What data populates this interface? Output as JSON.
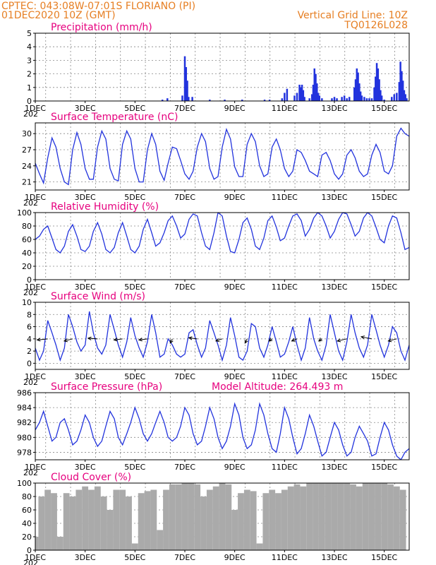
{
  "header": {
    "line1": "CPTEC:   043:08W-07:01S   FLORIANO (PI)",
    "line2": "01DEC2020 10Z (GMT)",
    "grid_note": "Vertical Grid Line: 10Z",
    "run_id": "TQ0126L028"
  },
  "colors": {
    "header": "#e67e22",
    "panel_title": "#e6007e",
    "line": "#2233dd",
    "bar": "#2233dd",
    "cloud": "#aaaaaa"
  },
  "x_axis": {
    "start": "01DEC2020 00Z",
    "end": "16DEC2020 00Z",
    "unit": "day",
    "ticks": [
      {
        "day": 0,
        "label": "1DEC"
      },
      {
        "day": 2,
        "label": "3DEC"
      },
      {
        "day": 4,
        "label": "5DEC"
      },
      {
        "day": 6,
        "label": "7DEC"
      },
      {
        "day": 8,
        "label": "9DEC"
      },
      {
        "day": 10,
        "label": "11DEC"
      },
      {
        "day": 12,
        "label": "13DEC"
      },
      {
        "day": 14,
        "label": "15DEC"
      }
    ],
    "year_stub": "202"
  },
  "chart_data": [
    {
      "type": "bar",
      "title": "Precipitation (mm/h)",
      "ylim": [
        0,
        5
      ],
      "yticks": [
        "0",
        "1",
        "2",
        "3",
        "4",
        "5"
      ],
      "x": [
        5.1,
        5.3,
        5.9,
        6.0,
        6.05,
        6.1,
        6.15,
        6.3,
        7.0,
        7.6,
        8.3,
        9.2,
        9.4,
        9.9,
        10.0,
        10.1,
        10.4,
        10.5,
        10.6,
        10.65,
        10.7,
        10.75,
        10.8,
        11.0,
        11.1,
        11.15,
        11.2,
        11.25,
        11.3,
        11.35,
        11.4,
        11.5,
        11.9,
        12.0,
        12.1,
        12.3,
        12.4,
        12.5,
        12.6,
        12.8,
        12.85,
        12.9,
        12.95,
        13.0,
        13.05,
        13.1,
        13.2,
        13.3,
        13.4,
        13.5,
        13.6,
        13.65,
        13.7,
        13.75,
        13.8,
        13.85,
        13.9,
        14.0,
        14.3,
        14.4,
        14.5,
        14.6,
        14.65,
        14.7,
        14.75,
        14.8,
        14.85,
        14.9
      ],
      "values": [
        0.1,
        0.2,
        0.4,
        3.3,
        2.5,
        1.5,
        0.3,
        0.3,
        0.1,
        0.1,
        0.1,
        0.1,
        0.1,
        0.2,
        0.6,
        0.9,
        0.4,
        0.6,
        1.2,
        1.0,
        1.2,
        0.8,
        0.3,
        0.2,
        0.5,
        1.2,
        2.4,
        2.0,
        1.3,
        0.6,
        0.4,
        0.2,
        0.2,
        0.3,
        0.2,
        0.3,
        0.4,
        0.2,
        0.3,
        1.0,
        1.6,
        2.4,
        2.1,
        1.3,
        0.7,
        0.4,
        0.3,
        0.2,
        0.2,
        0.2,
        1.0,
        1.8,
        2.8,
        2.4,
        1.6,
        0.8,
        0.4,
        0.1,
        0.3,
        0.5,
        0.6,
        1.4,
        2.9,
        2.2,
        1.5,
        0.8,
        0.5,
        0.2
      ]
    },
    {
      "type": "line",
      "title": "Surface Temperature (nC)",
      "ylim": [
        19.5,
        32
      ],
      "yticks": [
        "21",
        "24",
        "27",
        "30"
      ],
      "x": [
        0.0,
        0.17,
        0.33,
        0.5,
        0.67,
        0.83,
        1.0,
        1.17,
        1.33,
        1.5,
        1.67,
        1.83,
        2.0,
        2.17,
        2.33,
        2.5,
        2.67,
        2.83,
        3.0,
        3.17,
        3.33,
        3.5,
        3.67,
        3.83,
        4.0,
        4.17,
        4.33,
        4.5,
        4.67,
        4.83,
        5.0,
        5.17,
        5.33,
        5.5,
        5.67,
        5.83,
        6.0,
        6.17,
        6.33,
        6.5,
        6.67,
        6.83,
        7.0,
        7.17,
        7.33,
        7.5,
        7.67,
        7.83,
        8.0,
        8.17,
        8.33,
        8.5,
        8.67,
        8.83,
        9.0,
        9.17,
        9.33,
        9.5,
        9.67,
        9.83,
        10.0,
        10.17,
        10.33,
        10.5,
        10.67,
        10.83,
        11.0,
        11.17,
        11.33,
        11.5,
        11.67,
        11.83,
        12.0,
        12.17,
        12.33,
        12.5,
        12.67,
        12.83,
        13.0,
        13.17,
        13.33,
        13.5,
        13.67,
        13.83,
        14.0,
        14.17,
        14.33,
        14.5,
        14.67,
        14.83,
        15.0
      ],
      "values": [
        24.5,
        22.5,
        20.8,
        25.5,
        29.2,
        27.5,
        23.5,
        21.0,
        20.5,
        27.0,
        30.2,
        28.0,
        23.5,
        21.5,
        21.5,
        27.5,
        30.5,
        29.0,
        23.5,
        21.5,
        21.2,
        28.0,
        30.5,
        29.0,
        23.5,
        21.0,
        21.0,
        27.0,
        30.0,
        28.0,
        23.0,
        21.3,
        24.5,
        27.5,
        27.2,
        25.0,
        22.5,
        21.5,
        23.0,
        27.5,
        30.0,
        28.5,
        23.5,
        21.5,
        22.0,
        27.5,
        30.8,
        29.0,
        23.8,
        22.0,
        22.0,
        28.0,
        30.0,
        28.5,
        24.0,
        22.0,
        22.5,
        27.5,
        29.0,
        27.0,
        23.5,
        22.0,
        23.0,
        27.0,
        26.5,
        25.0,
        23.0,
        22.5,
        22.0,
        26.0,
        26.5,
        25.0,
        22.5,
        21.5,
        22.5,
        26.0,
        27.0,
        25.5,
        23.0,
        22.0,
        22.5,
        26.0,
        28.0,
        26.5,
        23.0,
        22.5,
        24.0,
        29.5,
        31.0,
        30.0,
        29.5
      ]
    },
    {
      "type": "line",
      "title": "Relative Humidity (%)",
      "ylim": [
        0,
        100
      ],
      "yticks": [
        "0",
        "20",
        "40",
        "60",
        "80",
        "100"
      ],
      "x": [
        0.0,
        0.17,
        0.33,
        0.5,
        0.67,
        0.83,
        1.0,
        1.17,
        1.33,
        1.5,
        1.67,
        1.83,
        2.0,
        2.17,
        2.33,
        2.5,
        2.67,
        2.83,
        3.0,
        3.17,
        3.33,
        3.5,
        3.67,
        3.83,
        4.0,
        4.17,
        4.33,
        4.5,
        4.67,
        4.83,
        5.0,
        5.17,
        5.33,
        5.5,
        5.67,
        5.83,
        6.0,
        6.17,
        6.33,
        6.5,
        6.67,
        6.83,
        7.0,
        7.17,
        7.33,
        7.5,
        7.67,
        7.83,
        8.0,
        8.17,
        8.33,
        8.5,
        8.67,
        8.83,
        9.0,
        9.17,
        9.33,
        9.5,
        9.67,
        9.83,
        10.0,
        10.17,
        10.33,
        10.5,
        10.67,
        10.83,
        11.0,
        11.17,
        11.33,
        11.5,
        11.67,
        11.83,
        12.0,
        12.17,
        12.33,
        12.5,
        12.67,
        12.83,
        13.0,
        13.17,
        13.33,
        13.5,
        13.67,
        13.83,
        14.0,
        14.17,
        14.33,
        14.5,
        14.67,
        14.83,
        15.0
      ],
      "values": [
        60,
        65,
        75,
        80,
        62,
        45,
        40,
        50,
        72,
        82,
        65,
        45,
        42,
        50,
        72,
        85,
        68,
        45,
        40,
        48,
        70,
        85,
        65,
        45,
        40,
        50,
        75,
        90,
        70,
        50,
        55,
        70,
        88,
        95,
        80,
        62,
        68,
        90,
        98,
        95,
        70,
        50,
        45,
        70,
        100,
        95,
        65,
        42,
        40,
        60,
        85,
        92,
        75,
        50,
        45,
        62,
        88,
        95,
        78,
        58,
        62,
        80,
        95,
        98,
        88,
        65,
        75,
        92,
        100,
        95,
        80,
        62,
        72,
        90,
        100,
        98,
        82,
        65,
        72,
        92,
        100,
        95,
        78,
        60,
        55,
        80,
        95,
        92,
        70,
        45,
        48
      ]
    },
    {
      "type": "line",
      "title": "Surface Wind (m/s)",
      "ylim": [
        -1,
        10
      ],
      "yticks": [
        "0",
        "2",
        "4",
        "6",
        "8",
        "10"
      ],
      "x": [
        0.0,
        0.17,
        0.33,
        0.5,
        0.67,
        0.83,
        1.0,
        1.17,
        1.33,
        1.5,
        1.67,
        1.83,
        2.0,
        2.17,
        2.33,
        2.5,
        2.67,
        2.83,
        3.0,
        3.17,
        3.33,
        3.5,
        3.67,
        3.83,
        4.0,
        4.17,
        4.33,
        4.5,
        4.67,
        4.83,
        5.0,
        5.17,
        5.33,
        5.5,
        5.67,
        5.83,
        6.0,
        6.17,
        6.33,
        6.5,
        6.67,
        6.83,
        7.0,
        7.17,
        7.33,
        7.5,
        7.67,
        7.83,
        8.0,
        8.17,
        8.33,
        8.5,
        8.67,
        8.83,
        9.0,
        9.17,
        9.33,
        9.5,
        9.67,
        9.83,
        10.0,
        10.17,
        10.33,
        10.5,
        10.67,
        10.83,
        11.0,
        11.17,
        11.33,
        11.5,
        11.67,
        11.83,
        12.0,
        12.17,
        12.33,
        12.5,
        12.67,
        12.83,
        13.0,
        13.17,
        13.33,
        13.5,
        13.67,
        13.83,
        14.0,
        14.17,
        14.33,
        14.5,
        14.67,
        14.83,
        15.0
      ],
      "values": [
        2.5,
        0.5,
        2.0,
        7.0,
        5.0,
        3.0,
        0.5,
        2.5,
        8.0,
        6.0,
        3.5,
        2.0,
        3.0,
        8.5,
        5.0,
        2.5,
        1.5,
        3.0,
        8.0,
        5.5,
        3.0,
        1.0,
        3.5,
        7.5,
        4.5,
        2.5,
        1.0,
        3.5,
        8.0,
        5.0,
        1.0,
        1.5,
        4.0,
        3.0,
        1.5,
        1.0,
        1.5,
        5.0,
        5.5,
        3.0,
        1.0,
        2.5,
        7.0,
        5.0,
        3.0,
        0.5,
        3.0,
        7.5,
        4.5,
        1.0,
        0.5,
        2.0,
        6.5,
        6.0,
        2.5,
        1.0,
        3.0,
        6.0,
        3.5,
        1.0,
        1.5,
        3.5,
        6.0,
        3.0,
        0.5,
        2.5,
        7.5,
        4.0,
        2.0,
        0.5,
        3.0,
        8.0,
        5.0,
        2.0,
        0.5,
        3.5,
        8.0,
        5.0,
        2.5,
        1.0,
        3.0,
        8.0,
        5.5,
        3.0,
        1.0,
        3.0,
        6.0,
        5.0,
        2.0,
        0.5,
        3.0
      ],
      "vectors": {
        "x": [
          0.5,
          1.5,
          2.5,
          3.5,
          4.5,
          5.5,
          6.5,
          7.5,
          8.5,
          9.5,
          10.5,
          11.5,
          12.5,
          13.5,
          14.5
        ],
        "u": [
          -5.0,
          -4.0,
          -4.5,
          -4.0,
          -4.0,
          -1.0,
          -4.0,
          -3.0,
          -1.0,
          -1.5,
          -2.5,
          -1.5,
          -4.5,
          -5.0,
          -4.0
        ],
        "v": [
          -0.5,
          -1.0,
          0.3,
          -0.5,
          -0.5,
          -2.0,
          0.5,
          -1.0,
          -2.0,
          -1.0,
          -1.0,
          -1.0,
          -1.0,
          1.0,
          -1.0
        ]
      }
    },
    {
      "type": "line",
      "title": "Surface Pressure (hPa)",
      "ylim": [
        977,
        986
      ],
      "yticks": [
        "978",
        "980",
        "982",
        "984",
        "986"
      ],
      "annotation": "Model Altitude: 264.493  m",
      "x": [
        0.0,
        0.17,
        0.33,
        0.5,
        0.67,
        0.83,
        1.0,
        1.17,
        1.33,
        1.5,
        1.67,
        1.83,
        2.0,
        2.17,
        2.33,
        2.5,
        2.67,
        2.83,
        3.0,
        3.17,
        3.33,
        3.5,
        3.67,
        3.83,
        4.0,
        4.17,
        4.33,
        4.5,
        4.67,
        4.83,
        5.0,
        5.17,
        5.33,
        5.5,
        5.67,
        5.83,
        6.0,
        6.17,
        6.33,
        6.5,
        6.67,
        6.83,
        7.0,
        7.17,
        7.33,
        7.5,
        7.67,
        7.83,
        8.0,
        8.17,
        8.33,
        8.5,
        8.67,
        8.83,
        9.0,
        9.17,
        9.33,
        9.5,
        9.67,
        9.83,
        10.0,
        10.17,
        10.33,
        10.5,
        10.67,
        10.83,
        11.0,
        11.17,
        11.33,
        11.5,
        11.67,
        11.83,
        12.0,
        12.17,
        12.33,
        12.5,
        12.67,
        12.83,
        13.0,
        13.17,
        13.33,
        13.5,
        13.67,
        13.83,
        14.0,
        14.17,
        14.33,
        14.5,
        14.67,
        14.83,
        15.0
      ],
      "values": [
        981.0,
        982.0,
        983.5,
        981.5,
        979.5,
        980.0,
        982.0,
        982.5,
        981.0,
        979.0,
        979.5,
        981.0,
        983.0,
        982.0,
        980.0,
        978.8,
        979.5,
        981.5,
        983.5,
        982.5,
        980.0,
        979.0,
        980.5,
        982.0,
        984.0,
        982.5,
        980.5,
        979.5,
        980.5,
        982.0,
        983.5,
        982.0,
        980.0,
        979.5,
        980.0,
        981.5,
        984.0,
        983.0,
        980.5,
        979.0,
        979.5,
        981.5,
        984.0,
        982.5,
        980.0,
        978.5,
        979.5,
        981.5,
        984.5,
        983.0,
        980.0,
        978.5,
        979.0,
        981.0,
        984.5,
        983.0,
        980.5,
        978.5,
        978.0,
        980.5,
        984.0,
        982.5,
        980.0,
        977.8,
        978.5,
        980.5,
        983.0,
        981.5,
        979.5,
        977.5,
        978.0,
        980.0,
        982.0,
        981.0,
        979.0,
        977.5,
        978.0,
        980.0,
        981.5,
        980.5,
        979.5,
        977.5,
        977.8,
        980.0,
        982.0,
        981.0,
        979.0,
        977.5,
        977.0,
        978.0,
        978.5
      ]
    },
    {
      "type": "bar",
      "title": "Cloud Cover (%)",
      "ylim": [
        0,
        100
      ],
      "yticks": [
        "0",
        "20",
        "40",
        "60",
        "80",
        "100"
      ],
      "x": [
        0.0,
        0.25,
        0.5,
        0.75,
        1.0,
        1.25,
        1.5,
        1.75,
        2.0,
        2.25,
        2.5,
        2.75,
        3.0,
        3.25,
        3.5,
        3.75,
        4.0,
        4.25,
        4.5,
        4.75,
        5.0,
        5.25,
        5.5,
        5.75,
        6.0,
        6.25,
        6.5,
        6.75,
        7.0,
        7.25,
        7.5,
        7.75,
        8.0,
        8.25,
        8.5,
        8.75,
        9.0,
        9.25,
        9.5,
        9.75,
        10.0,
        10.25,
        10.5,
        10.75,
        11.0,
        11.25,
        11.5,
        11.75,
        12.0,
        12.25,
        12.5,
        12.75,
        13.0,
        13.25,
        13.5,
        13.75,
        14.0,
        14.25,
        14.5,
        14.75
      ],
      "values": [
        20,
        80,
        90,
        85,
        20,
        85,
        80,
        90,
        95,
        90,
        95,
        80,
        60,
        90,
        90,
        80,
        10,
        85,
        88,
        90,
        30,
        90,
        98,
        98,
        100,
        100,
        98,
        80,
        90,
        95,
        100,
        98,
        60,
        85,
        90,
        88,
        10,
        85,
        90,
        85,
        90,
        95,
        98,
        95,
        100,
        100,
        100,
        100,
        100,
        100,
        100,
        98,
        95,
        100,
        100,
        100,
        100,
        98,
        95,
        90
      ]
    }
  ]
}
